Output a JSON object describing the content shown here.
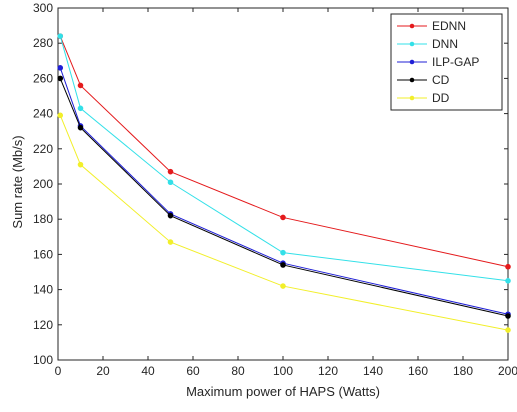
{
  "chart_data": {
    "type": "line",
    "xlabel": "Maximum power of HAPS (Watts)",
    "ylabel": "Sum rate (Mb/s)",
    "xlim": [
      0,
      200
    ],
    "ylim": [
      100,
      300
    ],
    "xticks": [
      0,
      20,
      40,
      60,
      80,
      100,
      120,
      140,
      160,
      180,
      200
    ],
    "yticks": [
      100,
      120,
      140,
      160,
      180,
      200,
      220,
      240,
      260,
      280,
      300
    ],
    "grid": false,
    "legend_position": "top-right",
    "x": [
      1,
      10,
      50,
      100,
      200
    ],
    "series": [
      {
        "name": "EDNN",
        "color": "#e41a1c",
        "values": [
          284,
          256,
          207,
          181,
          153
        ]
      },
      {
        "name": "DNN",
        "color": "#33e0e8",
        "values": [
          284,
          243,
          201,
          161,
          145
        ]
      },
      {
        "name": "ILP-GAP",
        "color": "#1f1fd6",
        "values": [
          266,
          233,
          183,
          155,
          126
        ]
      },
      {
        "name": "CD",
        "color": "#000000",
        "values": [
          260,
          232,
          182,
          154,
          125
        ]
      },
      {
        "name": "DD",
        "color": "#f2ef2a",
        "values": [
          239,
          211,
          167,
          142,
          117
        ]
      }
    ]
  }
}
